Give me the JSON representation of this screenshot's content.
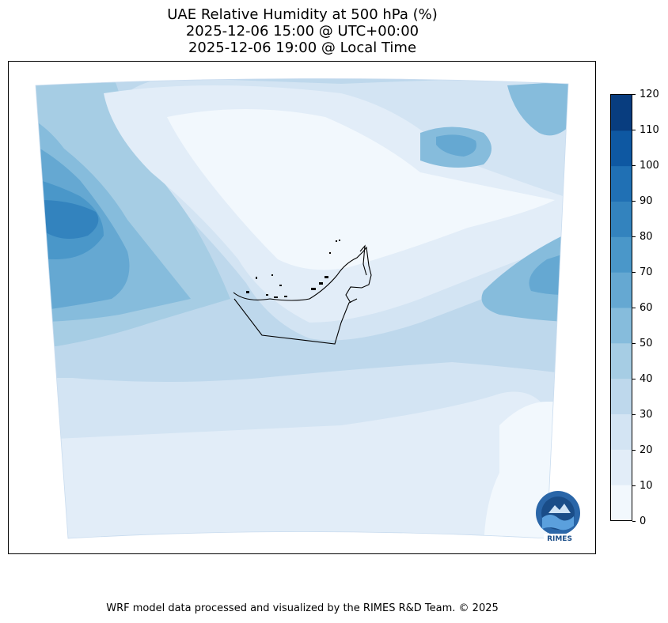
{
  "title": {
    "line1": "UAE Relative Humidity at 500 hPa (%)",
    "line2": "2025-12-06 15:00 @ UTC+00:00",
    "line3": "2025-12-06 19:00 @ Local Time"
  },
  "colorbar": {
    "levels": [
      0,
      10,
      20,
      30,
      40,
      50,
      60,
      70,
      80,
      90,
      100,
      110,
      120
    ],
    "tick_labels": [
      "0",
      "10",
      "20",
      "30",
      "40",
      "50",
      "60",
      "70",
      "80",
      "90",
      "100",
      "110",
      "120"
    ],
    "colors": [
      "#f2f8fd",
      "#e2edf8",
      "#d3e4f3",
      "#bed8ec",
      "#a6cde4",
      "#86bcdc",
      "#65a8d2",
      "#4a97c9",
      "#3383be",
      "#2070b4",
      "#0e58a2",
      "#083d7f"
    ]
  },
  "logo": {
    "text": "RIMES",
    "icon": "rimes-logo-icon"
  },
  "footer": {
    "credit": "WRF model data processed and visualized by the RIMES R&D Team. © 2025"
  }
}
